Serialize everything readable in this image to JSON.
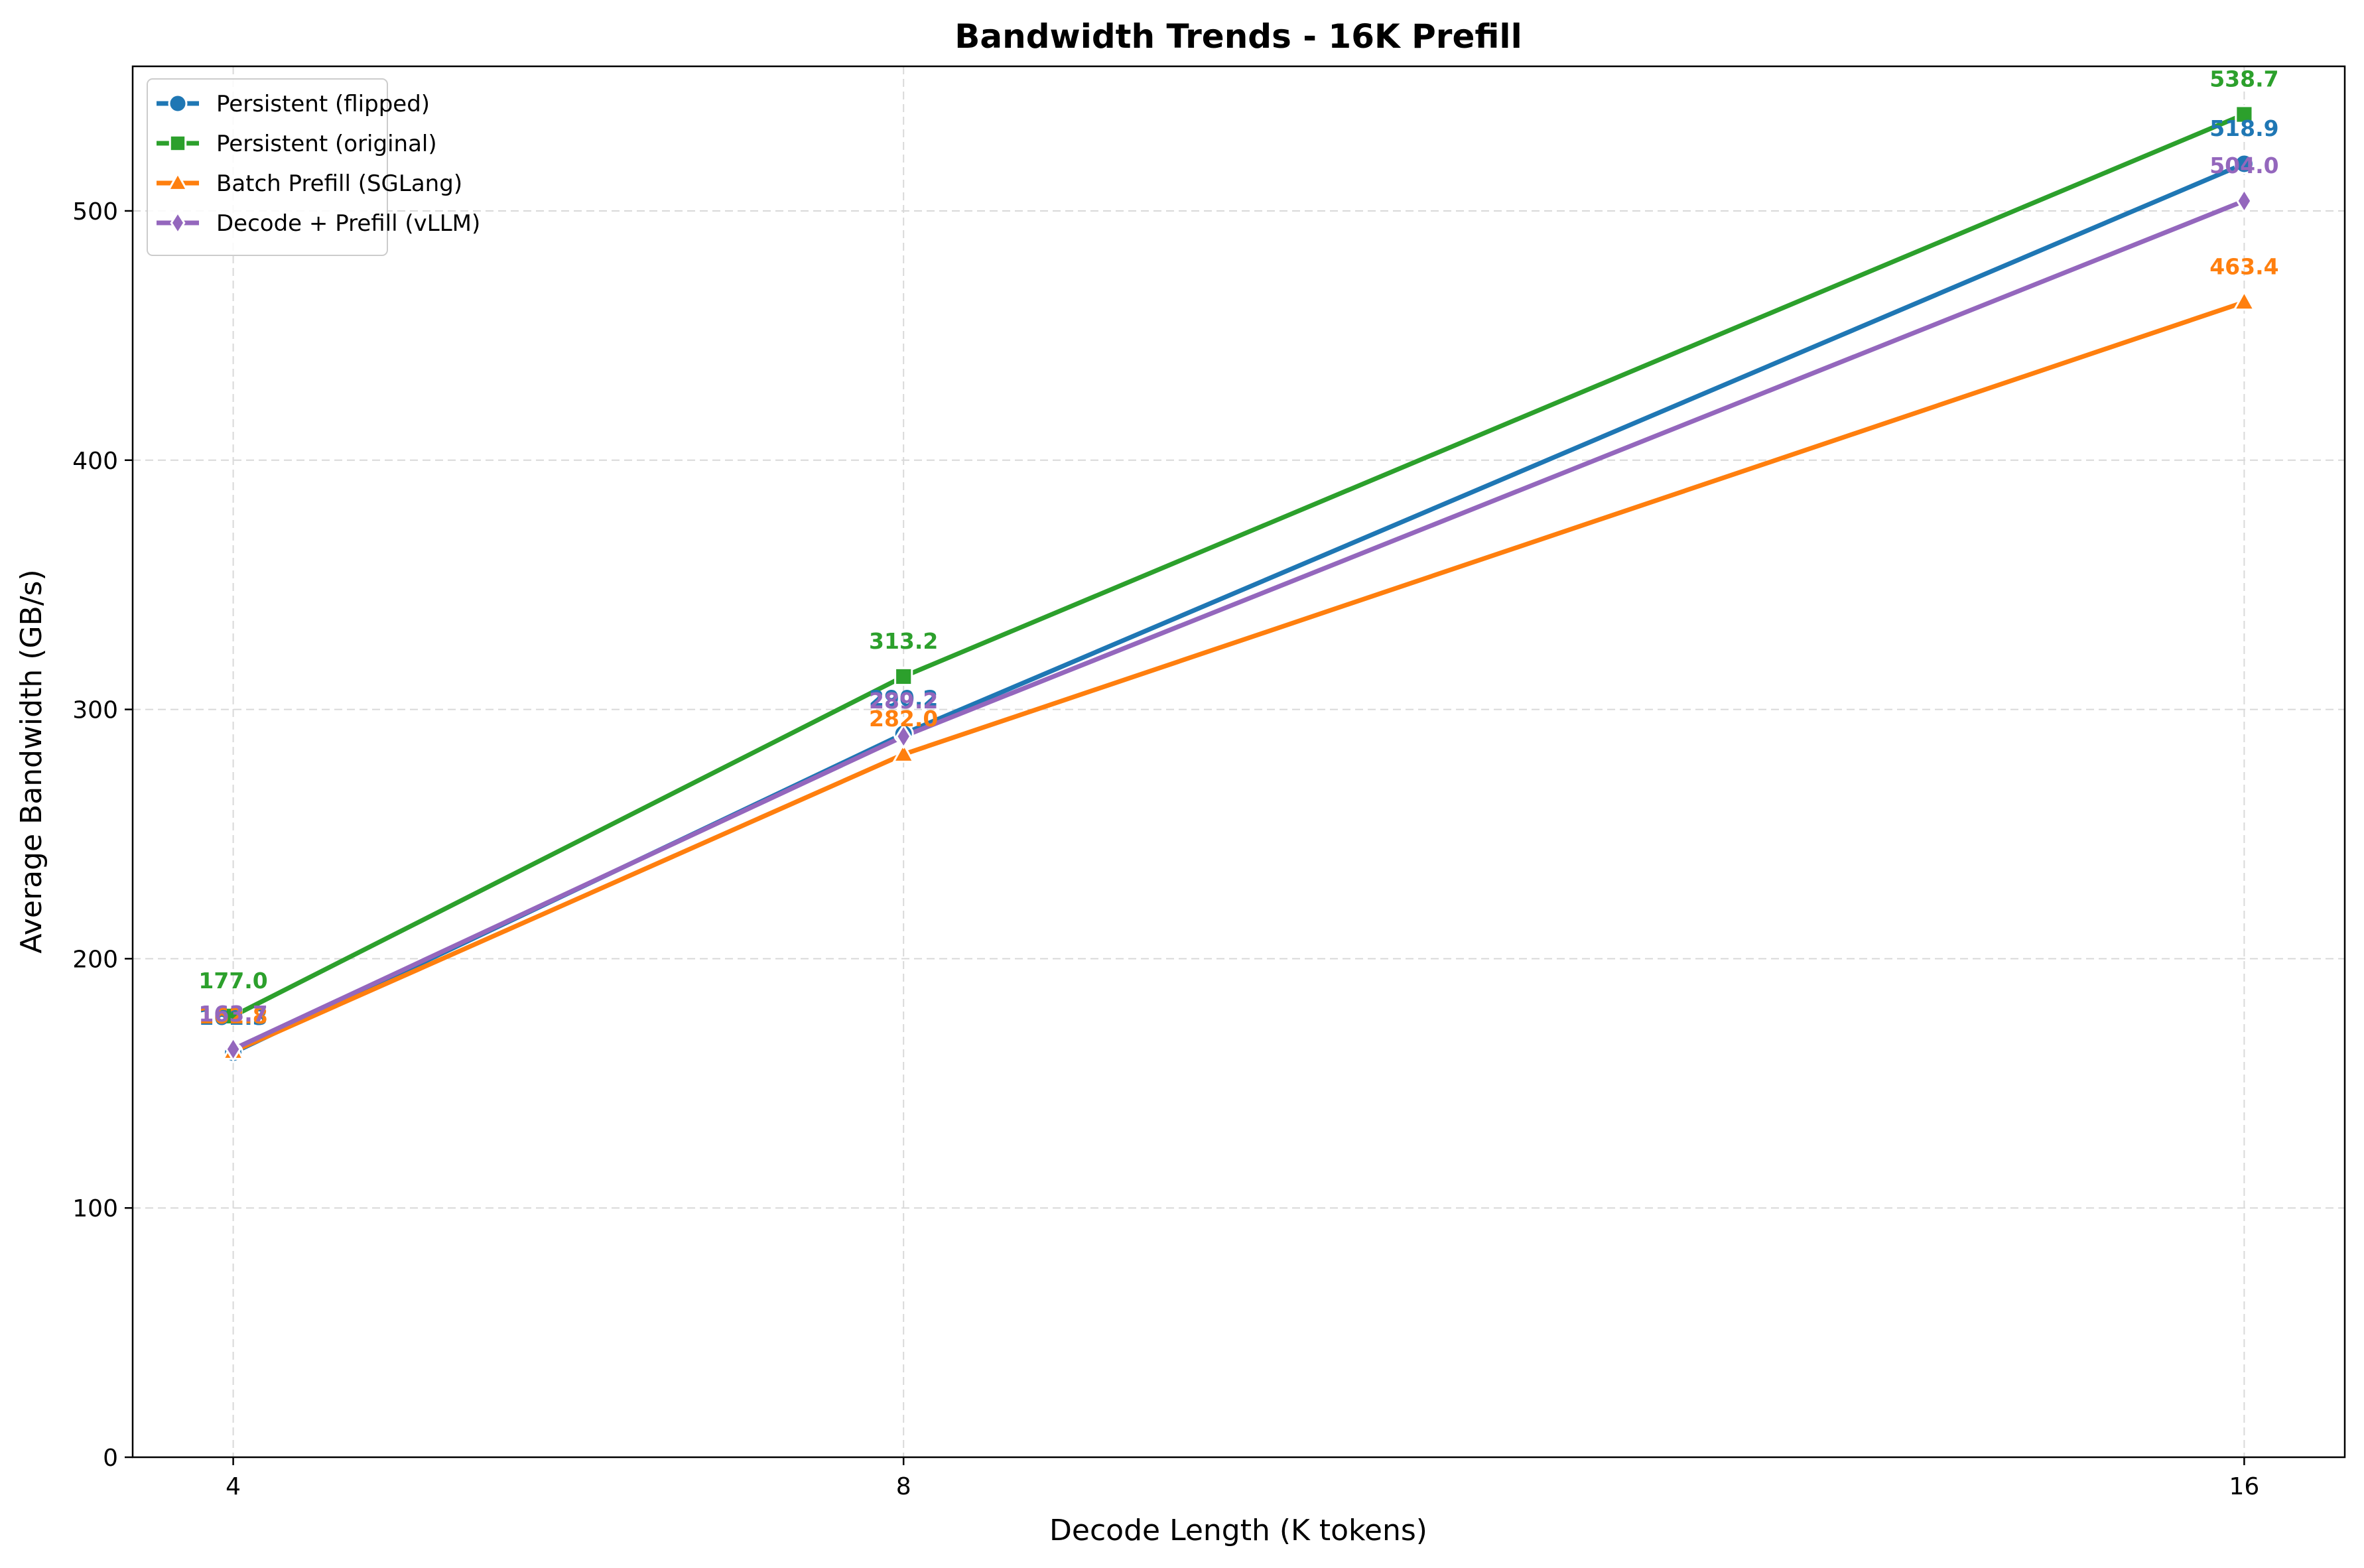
{
  "chart_data": {
    "type": "line",
    "title": "Bandwidth Trends - 16K Prefill",
    "xlabel": "Decode Length (K tokens)",
    "ylabel": "Average Bandwidth (GB/s)",
    "x": [
      4,
      8,
      16
    ],
    "x_tick_labels": [
      "4",
      "8",
      "16"
    ],
    "xlim": [
      3.4,
      16.6
    ],
    "ylim": [
      0,
      558
    ],
    "y_ticks": [
      0,
      100,
      200,
      300,
      400,
      500
    ],
    "y_tick_labels": [
      "0",
      "100",
      "200",
      "300",
      "400",
      "500"
    ],
    "grid": true,
    "legend_position": "top-left",
    "series": [
      {
        "name": "Persistent (flipped)",
        "color": "#1f77b4",
        "marker": "circle",
        "values": [
          162.3,
          290.2,
          518.9
        ],
        "labels": [
          "162.3",
          "290.2",
          "518.9"
        ]
      },
      {
        "name": "Persistent (original)",
        "color": "#2ca02c",
        "marker": "square",
        "values": [
          177.0,
          313.2,
          538.7
        ],
        "labels": [
          "177.0",
          "313.2",
          "538.7"
        ]
      },
      {
        "name": "Batch Prefill (SGLang)",
        "color": "#ff7f0e",
        "marker": "triangle",
        "values": [
          162.8,
          282.0,
          463.4
        ],
        "labels": [
          "162.8",
          "282.0",
          "463.4"
        ]
      },
      {
        "name": "Decode + Prefill (vLLM)",
        "color": "#9467bd",
        "marker": "diamond",
        "values": [
          163.7,
          289.2,
          504.0
        ],
        "labels": [
          "163.7",
          "289.2",
          "504.0"
        ]
      }
    ]
  }
}
